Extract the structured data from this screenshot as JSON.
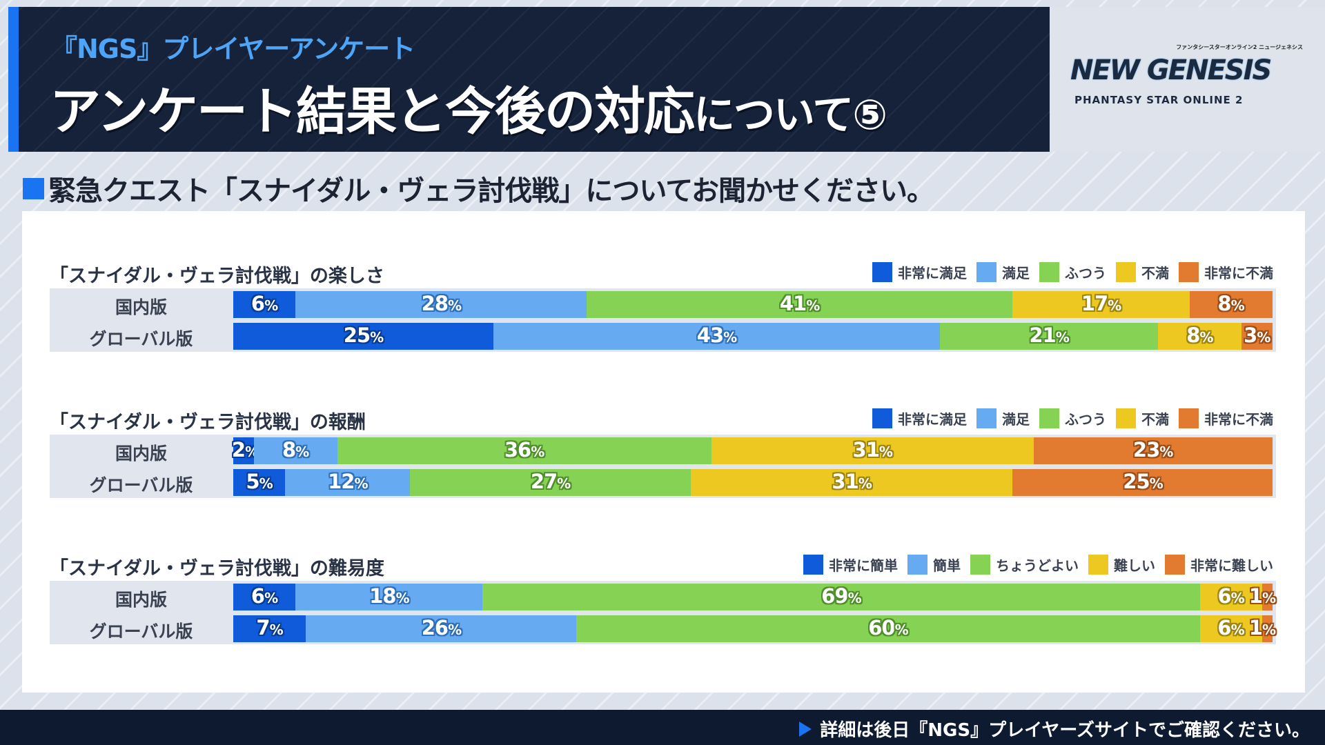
{
  "header": {
    "subtitle": "『NGS』プレイヤーアンケート",
    "title_main": "アンケート結果と今後の対応",
    "title_tail": "について⑤"
  },
  "logo": {
    "kana": "ファンタシースターオンライン2 ニュージェネシス",
    "name": "NEW GENESIS",
    "sub": "PHANTASY STAR ONLINE 2"
  },
  "question": "緊急クエスト「スナイダル・ヴェラ討伐戦」についてお聞かせください。",
  "footer": "詳細は後日『NGS』プレイヤーズサイトでご確認ください。",
  "colors": [
    "#0f5bd9",
    "#66aaf2",
    "#86d254",
    "#edc821",
    "#e27a30"
  ],
  "chart_data": [
    {
      "type": "bar",
      "stacked": true,
      "orientation": "horizontal",
      "title": "「スナイダル・ヴェラ討伐戦」の楽しさ",
      "legend": [
        "非常に満足",
        "満足",
        "ふつう",
        "不満",
        "非常に不満"
      ],
      "legend_position": "top-right",
      "categories": [
        "国内版",
        "グローバル版"
      ],
      "unit": "%",
      "series_values": [
        [
          6,
          28,
          41,
          17,
          8
        ],
        [
          25,
          43,
          21,
          8,
          3
        ]
      ]
    },
    {
      "type": "bar",
      "stacked": true,
      "orientation": "horizontal",
      "title": "「スナイダル・ヴェラ討伐戦」の報酬",
      "legend": [
        "非常に満足",
        "満足",
        "ふつう",
        "不満",
        "非常に不満"
      ],
      "legend_position": "top-right",
      "categories": [
        "国内版",
        "グローバル版"
      ],
      "unit": "%",
      "series_values": [
        [
          2,
          8,
          36,
          31,
          23
        ],
        [
          5,
          12,
          27,
          31,
          25
        ]
      ]
    },
    {
      "type": "bar",
      "stacked": true,
      "orientation": "horizontal",
      "title": "「スナイダル・ヴェラ討伐戦」の難易度",
      "legend": [
        "非常に簡単",
        "簡単",
        "ちょうどよい",
        "難しい",
        "非常に難しい"
      ],
      "legend_position": "top-right",
      "categories": [
        "国内版",
        "グローバル版"
      ],
      "unit": "%",
      "series_values": [
        [
          6,
          18,
          69,
          6,
          1
        ],
        [
          7,
          26,
          60,
          6,
          1
        ]
      ]
    }
  ]
}
